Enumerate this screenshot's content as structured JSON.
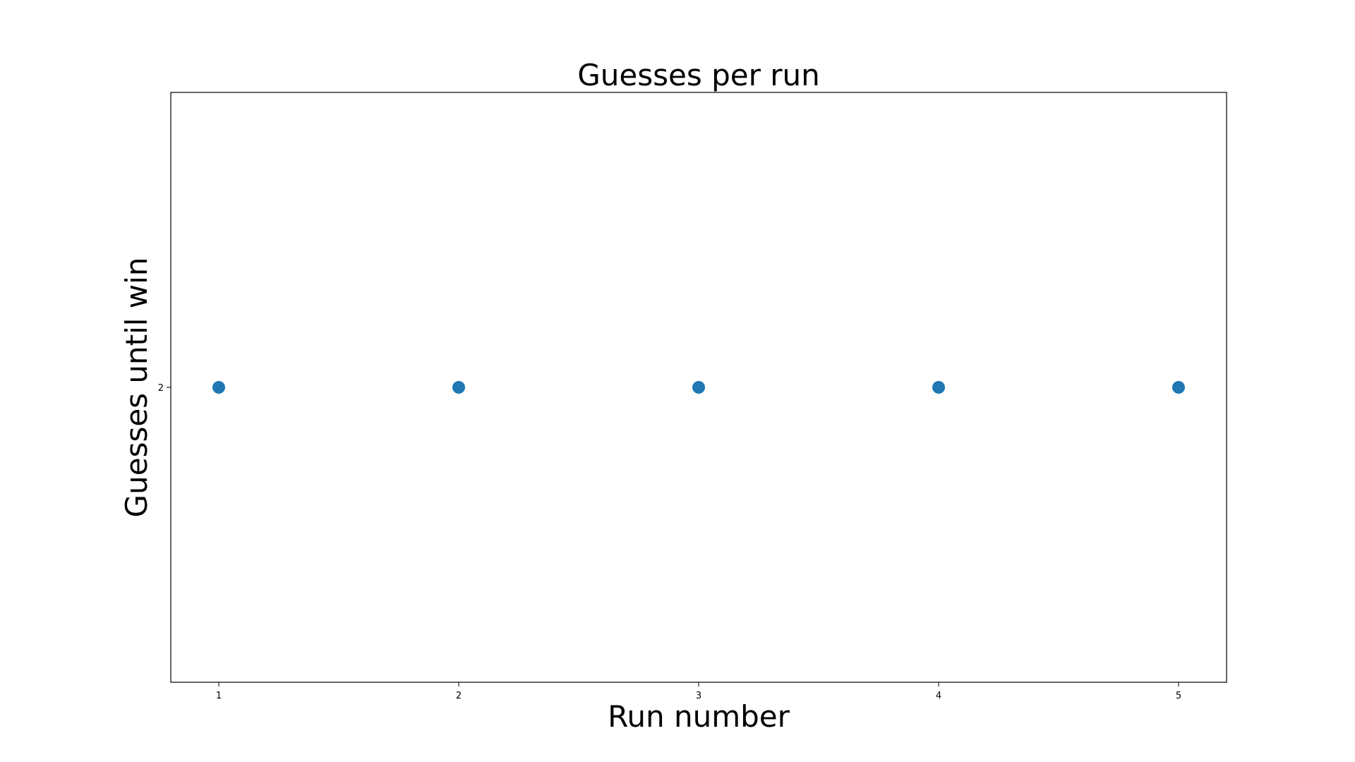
{
  "chart_data": {
    "type": "scatter",
    "title": "Guesses per run",
    "xlabel": "Run number",
    "ylabel": "Guesses until win",
    "x": [
      1,
      2,
      3,
      4,
      5
    ],
    "y": [
      2,
      2,
      2,
      2,
      2
    ],
    "x_ticks": [
      "1",
      "2",
      "3",
      "4",
      "5"
    ],
    "y_ticks": [
      "2"
    ],
    "xlim": [
      0.8,
      5.2
    ],
    "ylim": [
      1.945,
      2.055
    ],
    "grid": false,
    "marker_color": "#1f77b4"
  }
}
